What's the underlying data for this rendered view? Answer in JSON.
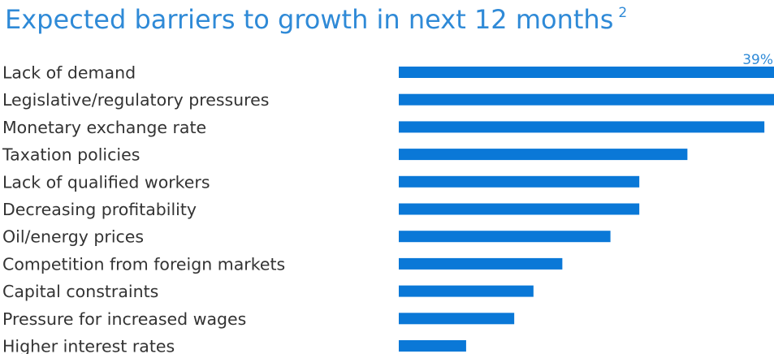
{
  "title": "Expected barriers to growth in next 12 months",
  "title_footnote": "2",
  "colors": {
    "title": "#2f8ad7",
    "bar": "#0a78d7",
    "label": "#333333",
    "data_label": "#2f8ad7"
  },
  "chart_data": {
    "type": "bar",
    "orientation": "horizontal",
    "title": "Expected barriers to growth in next 12 months",
    "categories": [
      "Lack of demand",
      "Legislative/regulatory pressures",
      "Monetary exchange rate",
      "Taxation policies",
      "Lack of qualified workers",
      "Decreasing profitability",
      "Oil/energy prices",
      "Competition from foreign markets",
      "Capital constraints",
      "Pressure for increased wages",
      "Higher interest rates"
    ],
    "values": [
      39,
      39,
      38,
      30,
      25,
      25,
      22,
      17,
      14,
      12,
      7
    ],
    "unit": "%",
    "data_labels": [
      {
        "index": 0,
        "text": "39%"
      }
    ],
    "xlim": [
      0,
      39
    ],
    "grid": false,
    "legend": "none"
  }
}
